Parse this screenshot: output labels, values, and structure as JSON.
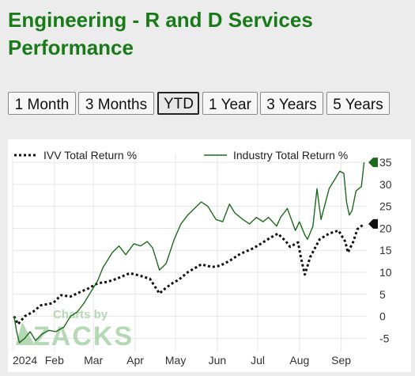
{
  "header": {
    "title_line1": "Engineering - R and D Services",
    "title_line2": "Performance"
  },
  "range_tabs": [
    {
      "label": "1 Month",
      "active": false
    },
    {
      "label": "3 Months",
      "active": false
    },
    {
      "label": "YTD",
      "active": true
    },
    {
      "label": "1 Year",
      "active": false
    },
    {
      "label": "3 Years",
      "active": false
    },
    {
      "label": "5 Years",
      "active": false
    }
  ],
  "watermark": {
    "line1": "Charts by",
    "line2": "ZACKS"
  },
  "colors": {
    "industry": "#1e6b1e",
    "ivv": "#111111",
    "accent": "#1a7a1a"
  },
  "chart_data": {
    "type": "line",
    "ylim": [
      -8,
      37
    ],
    "yticks": [
      -5,
      0,
      5,
      10,
      15,
      20,
      25,
      30,
      35
    ],
    "xlim": [
      "2024-01-01",
      "2024-09-20"
    ],
    "xticks": [
      {
        "label": "2024",
        "date": "2024-01-01"
      },
      {
        "label": "Feb",
        "date": "2024-02-01"
      },
      {
        "label": "Mar",
        "date": "2024-03-01"
      },
      {
        "label": "Apr",
        "date": "2024-04-01"
      },
      {
        "label": "May",
        "date": "2024-05-01"
      },
      {
        "label": "Jun",
        "date": "2024-06-01"
      },
      {
        "label": "Jul",
        "date": "2024-07-01"
      },
      {
        "label": "Aug",
        "date": "2024-08-01"
      },
      {
        "label": "Sep",
        "date": "2024-09-01"
      }
    ],
    "legend_position": "top",
    "series": [
      {
        "name": "IVV Total Return %",
        "style": "dotted",
        "color": "#111111",
        "end_value": 21,
        "points": [
          [
            "2024-01-02",
            0
          ],
          [
            "2024-01-05",
            -1.8
          ],
          [
            "2024-01-10",
            0
          ],
          [
            "2024-01-16",
            1
          ],
          [
            "2024-01-22",
            2.5
          ],
          [
            "2024-01-31",
            3
          ],
          [
            "2024-02-06",
            4.8
          ],
          [
            "2024-02-13",
            4.5
          ],
          [
            "2024-02-20",
            5.5
          ],
          [
            "2024-02-26",
            6.3
          ],
          [
            "2024-03-04",
            7.5
          ],
          [
            "2024-03-11",
            7.8
          ],
          [
            "2024-03-18",
            8.5
          ],
          [
            "2024-03-28",
            9.8
          ],
          [
            "2024-04-05",
            9.2
          ],
          [
            "2024-04-12",
            8.5
          ],
          [
            "2024-04-19",
            5.2
          ],
          [
            "2024-04-24",
            6.5
          ],
          [
            "2024-04-30",
            7.8
          ],
          [
            "2024-05-03",
            8.2
          ],
          [
            "2024-05-10",
            10
          ],
          [
            "2024-05-20",
            11.8
          ],
          [
            "2024-05-28",
            11.2
          ],
          [
            "2024-06-03",
            11.5
          ],
          [
            "2024-06-10",
            12.6
          ],
          [
            "2024-06-18",
            14.2
          ],
          [
            "2024-06-28",
            15.5
          ],
          [
            "2024-07-05",
            16.8
          ],
          [
            "2024-07-10",
            17.8
          ],
          [
            "2024-07-16",
            18.8
          ],
          [
            "2024-07-22",
            17
          ],
          [
            "2024-07-25",
            15.8
          ],
          [
            "2024-07-31",
            16.8
          ],
          [
            "2024-08-02",
            13.5
          ],
          [
            "2024-08-05",
            9.5
          ],
          [
            "2024-08-09",
            13.5
          ],
          [
            "2024-08-16",
            17.5
          ],
          [
            "2024-08-23",
            18.8
          ],
          [
            "2024-08-30",
            19.5
          ],
          [
            "2024-09-04",
            17
          ],
          [
            "2024-09-06",
            14.5
          ],
          [
            "2024-09-10",
            17
          ],
          [
            "2024-09-13",
            19.8
          ],
          [
            "2024-09-18",
            21
          ]
        ]
      },
      {
        "name": "Industry Total Return %",
        "style": "solid",
        "color": "#1e6b1e",
        "end_value": 35,
        "points": [
          [
            "2024-01-02",
            0
          ],
          [
            "2024-01-04",
            -3.5
          ],
          [
            "2024-01-06",
            -6
          ],
          [
            "2024-01-10",
            -5
          ],
          [
            "2024-01-14",
            -3.5
          ],
          [
            "2024-01-18",
            -5.5
          ],
          [
            "2024-01-23",
            -4
          ],
          [
            "2024-01-28",
            -3.2
          ],
          [
            "2024-02-02",
            -3.5
          ],
          [
            "2024-02-08",
            -2.5
          ],
          [
            "2024-02-13",
            0
          ],
          [
            "2024-02-18",
            1
          ],
          [
            "2024-02-23",
            3
          ],
          [
            "2024-02-28",
            5.5
          ],
          [
            "2024-03-04",
            8
          ],
          [
            "2024-03-08",
            11
          ],
          [
            "2024-03-11",
            12.5
          ],
          [
            "2024-03-15",
            14.5
          ],
          [
            "2024-03-20",
            16
          ],
          [
            "2024-03-25",
            14
          ],
          [
            "2024-03-31",
            16.5
          ],
          [
            "2024-04-05",
            16
          ],
          [
            "2024-04-10",
            17
          ],
          [
            "2024-04-14",
            15.5
          ],
          [
            "2024-04-19",
            10.5
          ],
          [
            "2024-04-24",
            12
          ],
          [
            "2024-04-30",
            17.5
          ],
          [
            "2024-05-05",
            21
          ],
          [
            "2024-05-10",
            23
          ],
          [
            "2024-05-15",
            24.5
          ],
          [
            "2024-05-20",
            26
          ],
          [
            "2024-05-25",
            25
          ],
          [
            "2024-05-31",
            22
          ],
          [
            "2024-06-05",
            21.5
          ],
          [
            "2024-06-10",
            25.5
          ],
          [
            "2024-06-14",
            23.5
          ],
          [
            "2024-06-20",
            22
          ],
          [
            "2024-06-25",
            21
          ],
          [
            "2024-06-30",
            22.5
          ],
          [
            "2024-07-05",
            21.5
          ],
          [
            "2024-07-09",
            22.5
          ],
          [
            "2024-07-15",
            20.5
          ],
          [
            "2024-07-18",
            22.5
          ],
          [
            "2024-07-23",
            24.5
          ],
          [
            "2024-07-26",
            22
          ],
          [
            "2024-07-29",
            19.5
          ],
          [
            "2024-08-01",
            21.5
          ],
          [
            "2024-08-05",
            18.5
          ],
          [
            "2024-08-07",
            17.5
          ],
          [
            "2024-08-11",
            20.5
          ],
          [
            "2024-08-14",
            29
          ],
          [
            "2024-08-17",
            22
          ],
          [
            "2024-08-20",
            25.5
          ],
          [
            "2024-08-23",
            29
          ],
          [
            "2024-08-27",
            31
          ],
          [
            "2024-08-31",
            33
          ],
          [
            "2024-09-03",
            32.5
          ],
          [
            "2024-09-05",
            26
          ],
          [
            "2024-09-07",
            23
          ],
          [
            "2024-09-09",
            24
          ],
          [
            "2024-09-12",
            28.5
          ],
          [
            "2024-09-16",
            29.5
          ],
          [
            "2024-09-18",
            35
          ]
        ]
      }
    ]
  }
}
